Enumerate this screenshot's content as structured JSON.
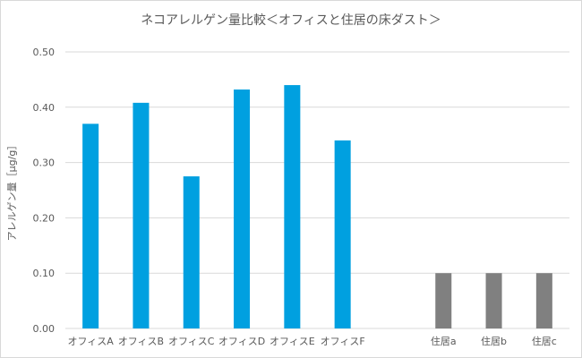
{
  "chart_data": {
    "type": "bar",
    "title": "ネコアレルゲン量比較＜オフィスと住居の床ダスト＞",
    "ylabel": "アレルゲン量［μg/g］",
    "xlabel": "",
    "ylim": [
      0,
      0.5
    ],
    "yticks": [
      "0.00",
      "0.10",
      "0.20",
      "0.30",
      "0.40",
      "0.50"
    ],
    "grid": true,
    "legend": "none",
    "categories": [
      "オフィスA",
      "オフィスB",
      "オフィスC",
      "オフィスD",
      "オフィスE",
      "オフィスF",
      "",
      "住居a",
      "住居b",
      "住居c"
    ],
    "values": [
      0.37,
      0.408,
      0.275,
      0.432,
      0.44,
      0.34,
      null,
      0.1,
      0.1,
      0.1
    ],
    "colors": [
      "#00a0e0",
      "#00a0e0",
      "#00a0e0",
      "#00a0e0",
      "#00a0e0",
      "#00a0e0",
      null,
      "#808080",
      "#808080",
      "#808080"
    ]
  }
}
